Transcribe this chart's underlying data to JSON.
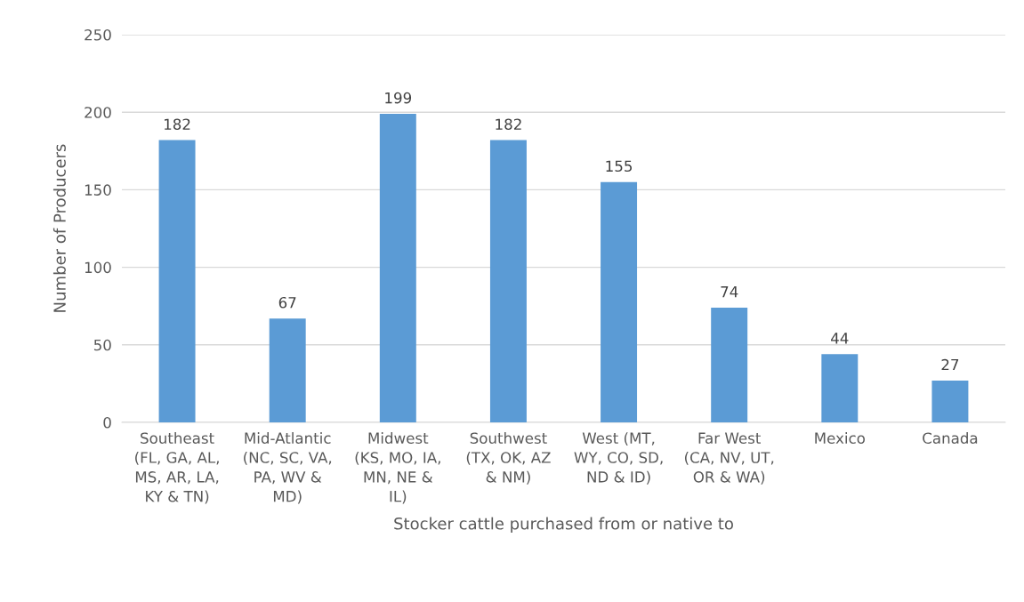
{
  "chart_data": {
    "type": "bar",
    "categories": [
      "Southeast\n(FL, GA, AL,\nMS, AR, LA,\nKY & TN)",
      "Mid-Atlantic\n(NC, SC, VA,\nPA, WV &\nMD)",
      "Midwest\n(KS, MO, IA,\nMN, NE &\nIL)",
      "Southwest\n(TX, OK, AZ\n& NM)",
      "West (MT,\nWY, CO, SD,\nND & ID)",
      "Far West\n(CA, NV, UT,\nOR & WA)",
      "Mexico",
      "Canada"
    ],
    "values": [
      182,
      67,
      199,
      182,
      155,
      74,
      44,
      27
    ],
    "color": "#5b9bd5",
    "xlabel": "Stocker cattle purchased from or native to",
    "ylabel": "Number of Producers",
    "ylim": [
      0,
      250
    ],
    "yticks": [
      0,
      50,
      100,
      150,
      200,
      250
    ],
    "grid": "y",
    "data_labels": true
  }
}
